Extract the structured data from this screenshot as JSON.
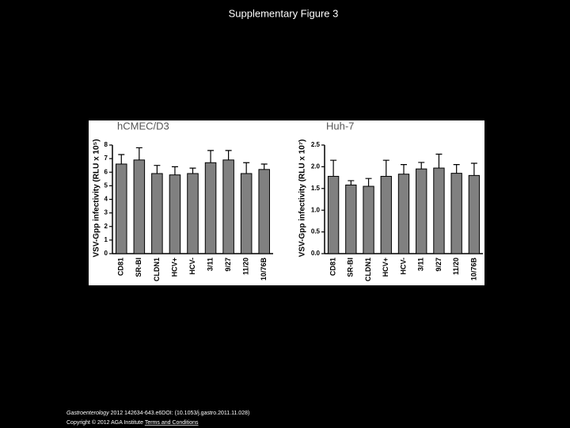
{
  "title": "Supplementary Figure 3",
  "footer": {
    "journal": "Gastroenterology",
    "citation": "2012 142634-643.e6DOI: (10.1053/j.gastro.2011.11.028)",
    "copyright": "Copyright © 2012 AGA Institute",
    "link": "Terms and Conditions"
  },
  "chart_data": [
    {
      "type": "bar",
      "title": "hCMEC/D3",
      "y_label": "VSV-Gpp infectivity (RLU x 10⁵)",
      "categories": [
        "CD81",
        "SR-BI",
        "CLDN1",
        "HCV+",
        "HCV-",
        "3/11",
        "9/27",
        "11/20",
        "10/76B"
      ],
      "values": [
        6.6,
        6.9,
        5.9,
        5.8,
        5.9,
        6.7,
        6.9,
        5.9,
        6.2
      ],
      "errors": [
        0.7,
        0.9,
        0.6,
        0.6,
        0.4,
        0.9,
        0.7,
        0.8,
        0.4
      ],
      "color": "#808080",
      "ylim": [
        0,
        8
      ],
      "yticks": [
        0,
        1,
        2,
        3,
        4,
        5,
        6,
        7,
        8
      ]
    },
    {
      "type": "bar",
      "title": "Huh-7",
      "y_label": "VSV-Gpp infectivity (RLU x 10⁷)",
      "categories": [
        "CD81",
        "SR-BI",
        "CLDN1",
        "HCV+",
        "HCV-",
        "3/11",
        "9/27",
        "11/20",
        "10/76B"
      ],
      "values": [
        1.78,
        1.58,
        1.55,
        1.78,
        1.83,
        1.95,
        1.97,
        1.85,
        1.8
      ],
      "errors": [
        0.37,
        0.1,
        0.18,
        0.37,
        0.22,
        0.15,
        0.32,
        0.2,
        0.28
      ],
      "color": "#808080",
      "ylim": [
        0,
        2.5
      ],
      "yticks": [
        {
          "value": 0,
          "label": "0.0"
        },
        0.5,
        {
          "value": 1,
          "label": "1.0"
        },
        1.5,
        {
          "value": 2,
          "label": "2.0"
        },
        2.5
      ]
    }
  ]
}
